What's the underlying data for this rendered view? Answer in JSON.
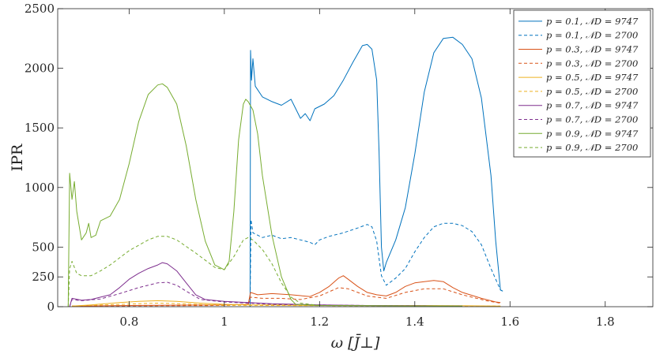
{
  "chart_data": {
    "type": "line",
    "xlabel": "ω [J̄⊥]",
    "ylabel": "IPR",
    "xlim": [
      0.65,
      1.9
    ],
    "ylim": [
      0,
      2500
    ],
    "xticks": [
      0.8,
      1,
      1.2,
      1.4,
      1.6,
      1.8
    ],
    "xtick_labels": [
      "0.8",
      "1",
      "1.2",
      "1.4",
      "1.6",
      "1.8"
    ],
    "yticks": [
      0,
      250,
      500,
      1000,
      1500,
      2000,
      2500
    ],
    "ytick_labels": [
      "0",
      "250",
      "500",
      "1000",
      "1500",
      "2000",
      "2500"
    ],
    "grid": false,
    "legend_position": "top-right",
    "series": [
      {
        "name": "p = 0.1, 𝒩D = 9747",
        "color": "#0072BD",
        "style": "solid",
        "points": [
          [
            1.054,
            0
          ],
          [
            1.055,
            2150
          ],
          [
            1.057,
            1900
          ],
          [
            1.06,
            2080
          ],
          [
            1.065,
            1850
          ],
          [
            1.08,
            1760
          ],
          [
            1.1,
            1720
          ],
          [
            1.12,
            1690
          ],
          [
            1.14,
            1740
          ],
          [
            1.16,
            1580
          ],
          [
            1.17,
            1620
          ],
          [
            1.18,
            1560
          ],
          [
            1.19,
            1660
          ],
          [
            1.21,
            1700
          ],
          [
            1.23,
            1770
          ],
          [
            1.25,
            1900
          ],
          [
            1.27,
            2050
          ],
          [
            1.29,
            2190
          ],
          [
            1.3,
            2200
          ],
          [
            1.31,
            2160
          ],
          [
            1.32,
            1900
          ],
          [
            1.325,
            1300
          ],
          [
            1.33,
            500
          ],
          [
            1.335,
            300
          ],
          [
            1.34,
            370
          ],
          [
            1.36,
            560
          ],
          [
            1.38,
            830
          ],
          [
            1.4,
            1280
          ],
          [
            1.42,
            1800
          ],
          [
            1.44,
            2130
          ],
          [
            1.46,
            2250
          ],
          [
            1.48,
            2260
          ],
          [
            1.5,
            2200
          ],
          [
            1.52,
            2080
          ],
          [
            1.54,
            1750
          ],
          [
            1.56,
            1100
          ],
          [
            1.57,
            550
          ],
          [
            1.58,
            140
          ],
          [
            1.585,
            130
          ]
        ]
      },
      {
        "name": "p = 0.1, 𝒩D = 2700",
        "color": "#0072BD",
        "style": "dashed",
        "points": [
          [
            1.054,
            0
          ],
          [
            1.056,
            730
          ],
          [
            1.06,
            620
          ],
          [
            1.08,
            580
          ],
          [
            1.1,
            600
          ],
          [
            1.12,
            570
          ],
          [
            1.14,
            580
          ],
          [
            1.16,
            560
          ],
          [
            1.18,
            540
          ],
          [
            1.19,
            520
          ],
          [
            1.2,
            560
          ],
          [
            1.22,
            590
          ],
          [
            1.25,
            620
          ],
          [
            1.28,
            660
          ],
          [
            1.3,
            690
          ],
          [
            1.31,
            670
          ],
          [
            1.32,
            550
          ],
          [
            1.33,
            260
          ],
          [
            1.34,
            180
          ],
          [
            1.36,
            240
          ],
          [
            1.38,
            320
          ],
          [
            1.4,
            460
          ],
          [
            1.42,
            580
          ],
          [
            1.44,
            670
          ],
          [
            1.46,
            700
          ],
          [
            1.48,
            700
          ],
          [
            1.5,
            680
          ],
          [
            1.52,
            630
          ],
          [
            1.54,
            520
          ],
          [
            1.56,
            320
          ],
          [
            1.58,
            140
          ],
          [
            1.585,
            130
          ]
        ]
      },
      {
        "name": "p = 0.3, 𝒩D = 9747",
        "color": "#D95319",
        "style": "solid",
        "points": [
          [
            0.68,
            5
          ],
          [
            0.8,
            10
          ],
          [
            1.0,
            15
          ],
          [
            1.05,
            20
          ],
          [
            1.055,
            120
          ],
          [
            1.07,
            100
          ],
          [
            1.1,
            110
          ],
          [
            1.14,
            100
          ],
          [
            1.18,
            85
          ],
          [
            1.2,
            120
          ],
          [
            1.22,
            170
          ],
          [
            1.24,
            240
          ],
          [
            1.25,
            260
          ],
          [
            1.26,
            230
          ],
          [
            1.28,
            170
          ],
          [
            1.3,
            120
          ],
          [
            1.32,
            100
          ],
          [
            1.34,
            90
          ],
          [
            1.36,
            120
          ],
          [
            1.38,
            170
          ],
          [
            1.4,
            200
          ],
          [
            1.42,
            210
          ],
          [
            1.44,
            220
          ],
          [
            1.46,
            210
          ],
          [
            1.48,
            160
          ],
          [
            1.5,
            120
          ],
          [
            1.54,
            70
          ],
          [
            1.57,
            40
          ],
          [
            1.58,
            35
          ]
        ]
      },
      {
        "name": "p = 0.3, 𝒩D = 2700",
        "color": "#D95319",
        "style": "dashed",
        "points": [
          [
            0.68,
            5
          ],
          [
            1.0,
            10
          ],
          [
            1.05,
            15
          ],
          [
            1.055,
            80
          ],
          [
            1.08,
            70
          ],
          [
            1.12,
            70
          ],
          [
            1.16,
            60
          ],
          [
            1.2,
            90
          ],
          [
            1.24,
            160
          ],
          [
            1.26,
            150
          ],
          [
            1.3,
            90
          ],
          [
            1.34,
            70
          ],
          [
            1.38,
            120
          ],
          [
            1.42,
            150
          ],
          [
            1.46,
            150
          ],
          [
            1.5,
            100
          ],
          [
            1.55,
            50
          ],
          [
            1.58,
            30
          ]
        ]
      },
      {
        "name": "p = 0.5, 𝒩D = 9747",
        "color": "#EDB120",
        "style": "solid",
        "points": [
          [
            0.68,
            5
          ],
          [
            0.72,
            15
          ],
          [
            0.78,
            35
          ],
          [
            0.82,
            45
          ],
          [
            0.86,
            50
          ],
          [
            0.9,
            45
          ],
          [
            0.95,
            30
          ],
          [
            1.0,
            20
          ],
          [
            1.05,
            15
          ],
          [
            1.1,
            15
          ],
          [
            1.2,
            10
          ],
          [
            1.3,
            10
          ],
          [
            1.4,
            10
          ],
          [
            1.5,
            8
          ],
          [
            1.58,
            5
          ]
        ]
      },
      {
        "name": "p = 0.5, 𝒩D = 2700",
        "color": "#EDB120",
        "style": "dashed",
        "points": [
          [
            0.68,
            5
          ],
          [
            0.75,
            15
          ],
          [
            0.82,
            25
          ],
          [
            0.86,
            30
          ],
          [
            0.9,
            25
          ],
          [
            1.0,
            12
          ],
          [
            1.1,
            10
          ],
          [
            1.3,
            8
          ],
          [
            1.58,
            5
          ]
        ]
      },
      {
        "name": "p = 0.7, 𝒩D = 9747",
        "color": "#7E2F8E",
        "style": "solid",
        "points": [
          [
            0.675,
            0
          ],
          [
            0.68,
            70
          ],
          [
            0.7,
            55
          ],
          [
            0.72,
            60
          ],
          [
            0.74,
            80
          ],
          [
            0.76,
            100
          ],
          [
            0.78,
            160
          ],
          [
            0.8,
            230
          ],
          [
            0.82,
            280
          ],
          [
            0.84,
            320
          ],
          [
            0.86,
            350
          ],
          [
            0.87,
            370
          ],
          [
            0.88,
            360
          ],
          [
            0.9,
            300
          ],
          [
            0.92,
            200
          ],
          [
            0.94,
            100
          ],
          [
            0.96,
            60
          ],
          [
            1.0,
            45
          ],
          [
            1.05,
            35
          ],
          [
            1.1,
            25
          ],
          [
            1.2,
            15
          ],
          [
            1.3,
            10
          ],
          [
            1.4,
            8
          ],
          [
            1.5,
            5
          ]
        ]
      },
      {
        "name": "p = 0.7, 𝒩D = 2700",
        "color": "#7E2F8E",
        "style": "dashed",
        "points": [
          [
            0.675,
            0
          ],
          [
            0.68,
            60
          ],
          [
            0.7,
            50
          ],
          [
            0.74,
            65
          ],
          [
            0.78,
            110
          ],
          [
            0.82,
            160
          ],
          [
            0.86,
            200
          ],
          [
            0.88,
            205
          ],
          [
            0.9,
            180
          ],
          [
            0.92,
            130
          ],
          [
            0.95,
            60
          ],
          [
            1.0,
            40
          ],
          [
            1.05,
            30
          ],
          [
            1.1,
            20
          ],
          [
            1.3,
            10
          ],
          [
            1.5,
            5
          ]
        ]
      },
      {
        "name": "p = 0.9, 𝒩D = 9747",
        "color": "#77AC30",
        "style": "solid",
        "points": [
          [
            0.672,
            0
          ],
          [
            0.675,
            1120
          ],
          [
            0.68,
            900
          ],
          [
            0.685,
            1050
          ],
          [
            0.69,
            800
          ],
          [
            0.7,
            560
          ],
          [
            0.71,
            620
          ],
          [
            0.715,
            700
          ],
          [
            0.72,
            580
          ],
          [
            0.73,
            600
          ],
          [
            0.74,
            720
          ],
          [
            0.76,
            760
          ],
          [
            0.78,
            900
          ],
          [
            0.8,
            1200
          ],
          [
            0.82,
            1550
          ],
          [
            0.84,
            1780
          ],
          [
            0.86,
            1860
          ],
          [
            0.87,
            1870
          ],
          [
            0.88,
            1840
          ],
          [
            0.9,
            1700
          ],
          [
            0.92,
            1350
          ],
          [
            0.94,
            900
          ],
          [
            0.96,
            550
          ],
          [
            0.98,
            350
          ],
          [
            1.0,
            310
          ],
          [
            1.01,
            380
          ],
          [
            1.02,
            800
          ],
          [
            1.03,
            1400
          ],
          [
            1.04,
            1700
          ],
          [
            1.045,
            1740
          ],
          [
            1.05,
            1720
          ],
          [
            1.06,
            1650
          ],
          [
            1.07,
            1450
          ],
          [
            1.08,
            1100
          ],
          [
            1.1,
            600
          ],
          [
            1.12,
            250
          ],
          [
            1.14,
            60
          ],
          [
            1.15,
            20
          ],
          [
            1.2,
            10
          ],
          [
            1.3,
            8
          ],
          [
            1.5,
            5
          ]
        ]
      },
      {
        "name": "p = 0.9, 𝒩D = 2700",
        "color": "#77AC30",
        "style": "dashed",
        "points": [
          [
            0.672,
            0
          ],
          [
            0.675,
            320
          ],
          [
            0.68,
            380
          ],
          [
            0.69,
            280
          ],
          [
            0.7,
            260
          ],
          [
            0.72,
            260
          ],
          [
            0.74,
            300
          ],
          [
            0.76,
            350
          ],
          [
            0.8,
            470
          ],
          [
            0.84,
            560
          ],
          [
            0.86,
            590
          ],
          [
            0.88,
            590
          ],
          [
            0.9,
            560
          ],
          [
            0.94,
            450
          ],
          [
            0.98,
            330
          ],
          [
            1.0,
            310
          ],
          [
            1.02,
            420
          ],
          [
            1.04,
            560
          ],
          [
            1.05,
            580
          ],
          [
            1.06,
            560
          ],
          [
            1.08,
            480
          ],
          [
            1.1,
            360
          ],
          [
            1.12,
            200
          ],
          [
            1.14,
            80
          ],
          [
            1.16,
            30
          ],
          [
            1.2,
            10
          ],
          [
            1.3,
            8
          ],
          [
            1.5,
            5
          ]
        ]
      }
    ]
  }
}
